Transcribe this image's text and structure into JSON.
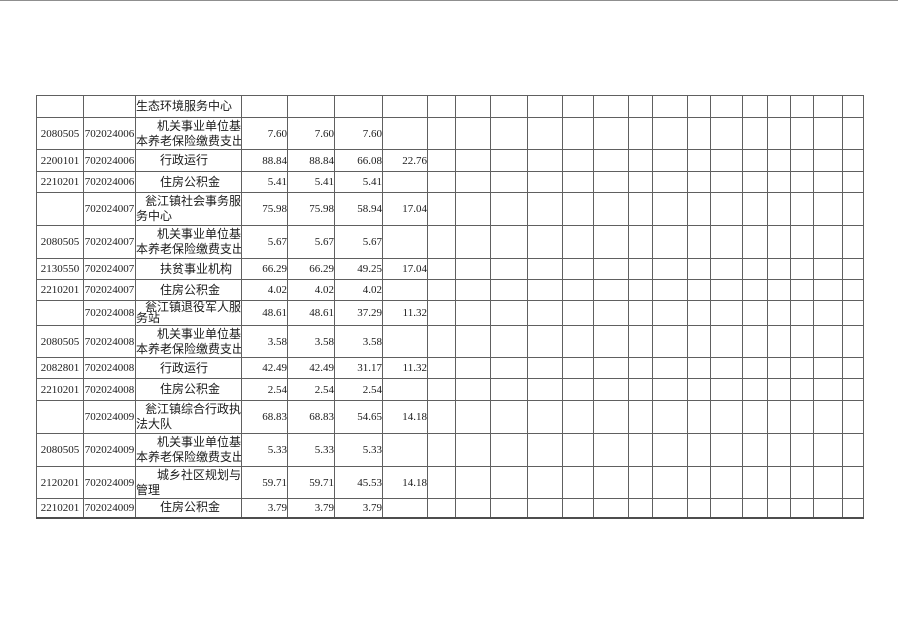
{
  "colors": {
    "background": "#ffffff",
    "grid_line": "#606060",
    "outer_border": "#4d4d4d",
    "text": "#1b1b1b"
  },
  "table": {
    "empty_trailing_columns": 15,
    "rows": [
      {
        "code1": "",
        "code2": "",
        "name": "生态环境服务中心",
        "name_lines": [
          "生态环境服务中心"
        ],
        "continuation": true,
        "values": [
          "",
          "",
          "",
          ""
        ]
      },
      {
        "code1": "2080505",
        "code2": "702024006",
        "name": "机关事业单位基本养老保险缴费支出",
        "name_lines": [
          "机关事业单位基",
          "本养老保险缴费支出"
        ],
        "values": [
          "7.60",
          "7.60",
          "7.60",
          ""
        ]
      },
      {
        "code1": "2200101",
        "code2": "702024006",
        "name": "行政运行",
        "name_lines": [
          "行政运行"
        ],
        "values": [
          "88.84",
          "88.84",
          "66.08",
          "22.76"
        ]
      },
      {
        "code1": "2210201",
        "code2": "702024006",
        "name": "住房公积金",
        "name_lines": [
          "住房公积金"
        ],
        "values": [
          "5.41",
          "5.41",
          "5.41",
          ""
        ]
      },
      {
        "code1": "",
        "code2": "702024007",
        "name": "瓮江镇社会事务服务中心",
        "name_lines": [
          "瓮江镇社会事务服",
          "务中心"
        ],
        "values": [
          "75.98",
          "75.98",
          "58.94",
          "17.04"
        ]
      },
      {
        "code1": "2080505",
        "code2": "702024007",
        "name": "机关事业单位基本养老保险缴费支出",
        "name_lines": [
          "机关事业单位基",
          "本养老保险缴费支出"
        ],
        "values": [
          "5.67",
          "5.67",
          "5.67",
          ""
        ]
      },
      {
        "code1": "2130550",
        "code2": "702024007",
        "name": "扶贫事业机构",
        "name_lines": [
          "扶贫事业机构"
        ],
        "values": [
          "66.29",
          "66.29",
          "49.25",
          "17.04"
        ]
      },
      {
        "code1": "2210201",
        "code2": "702024007",
        "name": "住房公积金",
        "name_lines": [
          "住房公积金"
        ],
        "values": [
          "4.02",
          "4.02",
          "4.02",
          ""
        ]
      },
      {
        "code1": "",
        "code2": "702024008",
        "name": "瓮江镇退役军人服务站",
        "name_lines": [
          "瓮江镇退役军人服",
          "务站"
        ],
        "values": [
          "48.61",
          "48.61",
          "37.29",
          "11.32"
        ]
      },
      {
        "code1": "2080505",
        "code2": "702024008",
        "name": "机关事业单位基本养老保险缴费支出",
        "name_lines": [
          "机关事业单位基",
          "本养老保险缴费支出"
        ],
        "values": [
          "3.58",
          "3.58",
          "3.58",
          ""
        ]
      },
      {
        "code1": "2082801",
        "code2": "702024008",
        "name": "行政运行",
        "name_lines": [
          "行政运行"
        ],
        "values": [
          "42.49",
          "42.49",
          "31.17",
          "11.32"
        ]
      },
      {
        "code1": "2210201",
        "code2": "702024008",
        "name": "住房公积金",
        "name_lines": [
          "住房公积金"
        ],
        "values": [
          "2.54",
          "2.54",
          "2.54",
          ""
        ]
      },
      {
        "code1": "",
        "code2": "702024009",
        "name": "瓮江镇综合行政执法大队",
        "name_lines": [
          "瓮江镇综合行政执",
          "法大队"
        ],
        "values": [
          "68.83",
          "68.83",
          "54.65",
          "14.18"
        ]
      },
      {
        "code1": "2080505",
        "code2": "702024009",
        "name": "机关事业单位基本养老保险缴费支出",
        "name_lines": [
          "机关事业单位基",
          "本养老保险缴费支出"
        ],
        "values": [
          "5.33",
          "5.33",
          "5.33",
          ""
        ]
      },
      {
        "code1": "2120201",
        "code2": "702024009",
        "name": "城乡社区规划与管理",
        "name_lines": [
          "城乡社区规划与",
          "管理"
        ],
        "values": [
          "59.71",
          "59.71",
          "45.53",
          "14.18"
        ]
      },
      {
        "code1": "2210201",
        "code2": "702024009",
        "name": "住房公积金",
        "name_lines": [
          "住房公积金"
        ],
        "values": [
          "3.79",
          "3.79",
          "3.79",
          ""
        ]
      }
    ]
  }
}
